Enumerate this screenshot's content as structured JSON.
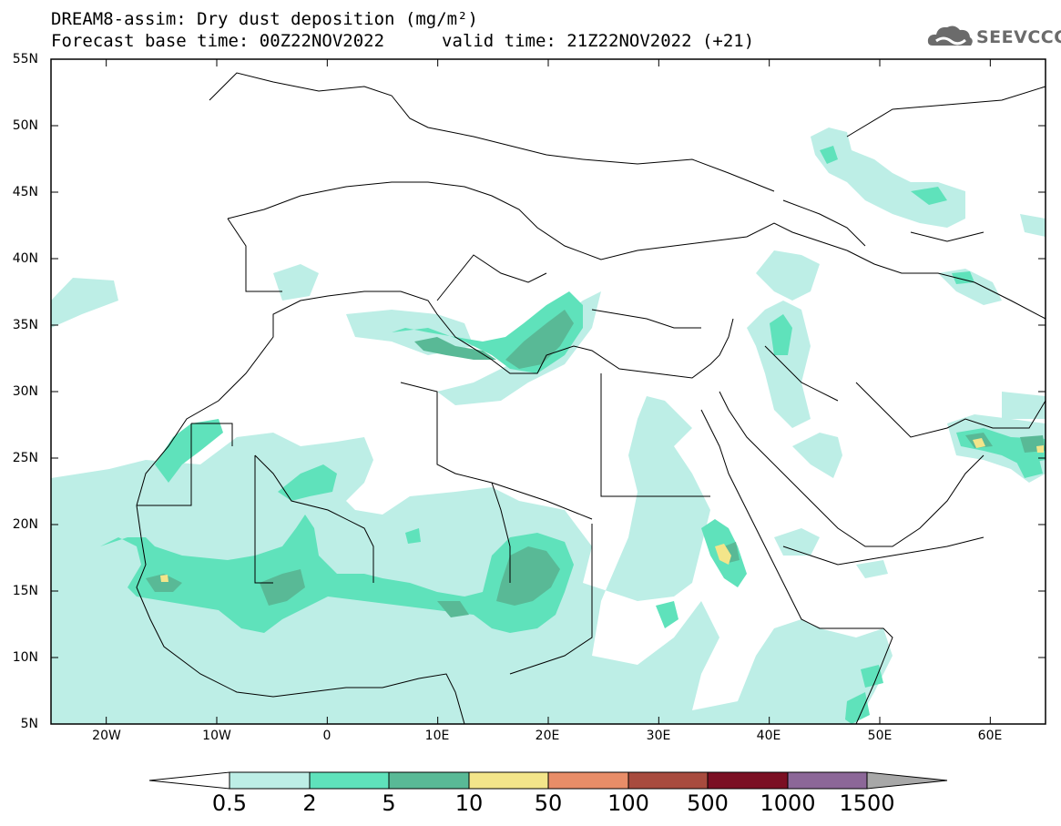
{
  "title": {
    "line1": "DREAM8-assim: Dry dust deposition (mg/m²)",
    "line2": "Forecast base time: 00Z22NOV2022",
    "line3": "valid time: 21Z22NOV2022 (+21)"
  },
  "logo": {
    "text": "SEEVCCC",
    "icon": "cloud-logo-icon"
  },
  "map": {
    "lat_labels": [
      "55N",
      "50N",
      "45N",
      "40N",
      "35N",
      "30N",
      "25N",
      "20N",
      "15N",
      "10N",
      "5N"
    ],
    "lon_labels": [
      "20W",
      "10W",
      "0",
      "10E",
      "20E",
      "30E",
      "40E",
      "50E",
      "60E"
    ],
    "lon_range": [
      -25,
      65
    ],
    "lat_range": [
      5,
      55
    ]
  },
  "colorbar": {
    "labels": [
      "0.5",
      "2",
      "5",
      "10",
      "50",
      "100",
      "500",
      "1000",
      "1500"
    ],
    "colors": [
      "#ffffff",
      "#bdeee6",
      "#5fe2bb",
      "#59b996",
      "#f3e58a",
      "#e88d68",
      "#a84b3e",
      "#7b0f23",
      "#8c6798",
      "#a8a8a8"
    ]
  }
}
